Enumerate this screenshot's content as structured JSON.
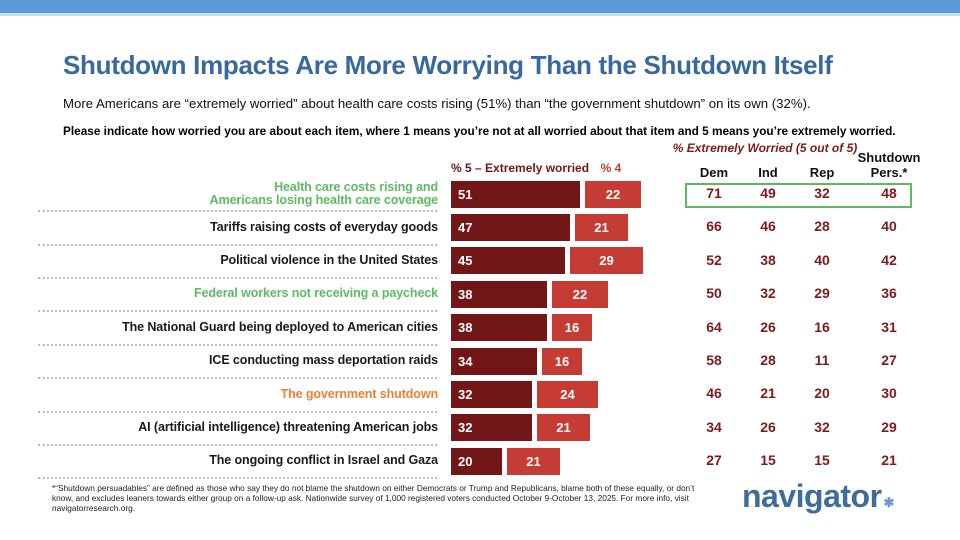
{
  "header": {
    "title": "Shutdown Impacts Are More Worrying Than the Shutdown Itself",
    "subtitle": "More Americans are “extremely worried” about health care costs rising (51%) than “the government shutdown” on its own (32%).",
    "question": "Please indicate how worried you are about each item, where 1 means you’re not at all worried about that item and 5 means you’re extremely worried."
  },
  "chart_data": {
    "type": "bar",
    "orientation": "horizontal",
    "legend": [
      "% 5 – Extremely worried",
      "% 4"
    ],
    "legend_position": "top",
    "xlim": [
      0,
      80
    ],
    "categories": [
      "Health care costs rising and\nAmericans losing health care coverage",
      "Tariffs raising costs of everyday goods",
      "Political violence in the United States",
      "Federal workers not receiving a paycheck",
      "The National Guard being deployed to American cities",
      "ICE conducting mass deportation raids",
      "The government shutdown",
      "AI (artificial intelligence) threatening American jobs",
      "The ongoing conflict in Israel and Gaza"
    ],
    "category_colors": [
      "green",
      "black",
      "black",
      "green",
      "black",
      "black",
      "orange",
      "black",
      "black"
    ],
    "series": [
      {
        "name": "% 5 – Extremely worried",
        "color": "#721618",
        "values": [
          51,
          47,
          45,
          38,
          38,
          34,
          32,
          32,
          20
        ]
      },
      {
        "name": "% 4",
        "color": "#C43C34",
        "values": [
          22,
          21,
          29,
          22,
          16,
          16,
          24,
          21,
          21
        ]
      }
    ],
    "table": {
      "title": "% Extremely Worried (5 out of 5)",
      "columns": [
        "Dem",
        "Ind",
        "Rep",
        "Shutdown Pers.*"
      ],
      "rows": [
        [
          71,
          49,
          32,
          48
        ],
        [
          66,
          46,
          28,
          40
        ],
        [
          52,
          38,
          40,
          42
        ],
        [
          50,
          32,
          29,
          36
        ],
        [
          64,
          26,
          16,
          31
        ],
        [
          58,
          28,
          11,
          27
        ],
        [
          46,
          21,
          20,
          30
        ],
        [
          34,
          26,
          32,
          29
        ],
        [
          27,
          15,
          15,
          21
        ]
      ],
      "highlight_row": 0
    }
  },
  "footnote": "*“Shutdown persuadables” are defined as those who say they do not blame the shutdown on either Democrats or Trump and Republicans, blame both of these equally, or don’t know, and excludes leaners towards either group on a follow-up ask. Nationwide survey of 1,000 registered voters conducted October 9-October 13, 2025. For more info, visit navigatorresearch.org.",
  "logo": {
    "text": "navigator",
    "mark": "✱"
  },
  "colors": {
    "accent_bar": "#5B9BD5",
    "accent_bar_light": "#C6DDF2",
    "title_blue": "#38699E",
    "dark_red": "#721618",
    "light_red": "#C43C34",
    "green": "#5CBB60",
    "orange": "#E6813C",
    "table_number_red": "#7E1A1B",
    "logo_blue": "#3C6D9C",
    "logo_star_blue": "#6898CC",
    "label_black": "#1A1A1A"
  }
}
